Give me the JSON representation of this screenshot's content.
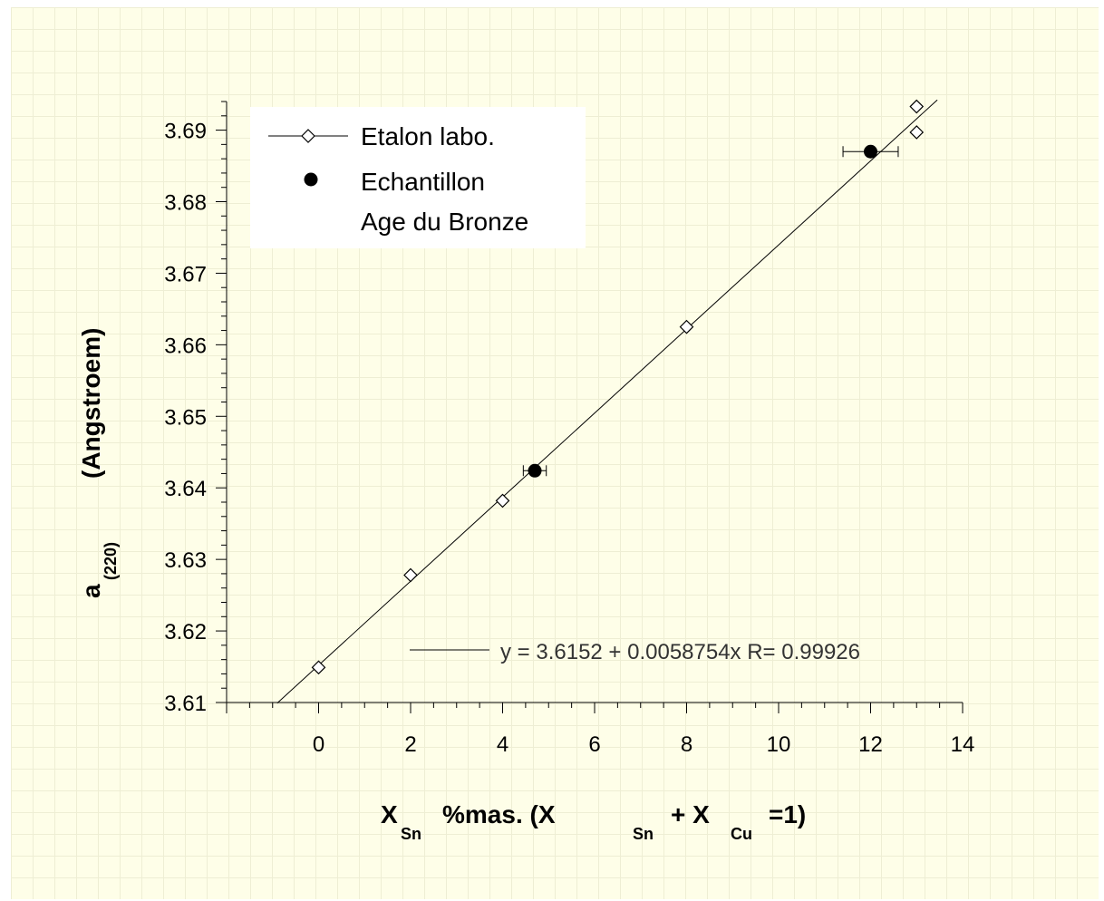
{
  "chart_data": {
    "type": "scatter",
    "xlim": [
      -2,
      14
    ],
    "ylim": [
      3.61,
      3.694
    ],
    "xticks": [
      "0",
      "2",
      "4",
      "6",
      "8",
      "10",
      "12",
      "14"
    ],
    "yticks": [
      "3.61",
      "3.62",
      "3.63",
      "3.64",
      "3.65",
      "3.66",
      "3.67",
      "3.68",
      "3.69"
    ],
    "xlabel": {
      "main": "X",
      "sub": "Sn",
      "mid": "%mas.   (X",
      "sub2": "Sn",
      "plus": "+ X",
      "sub3": "Cu",
      "end": "=1)"
    },
    "ylabel": {
      "main": "a",
      "sub": "(220)",
      "unit": "(Angstroem)"
    },
    "grid": false,
    "legend_position": "top-left",
    "series": [
      {
        "name": "Etalon labo.",
        "marker": "diamond-open",
        "x": [
          0,
          2,
          4,
          8,
          13,
          13
        ],
        "y": [
          3.6149,
          3.6278,
          3.6382,
          3.6625,
          3.6933,
          3.6897
        ]
      },
      {
        "name": "Echantillon",
        "name_line2": "Age du Bronze",
        "marker": "circle-filled",
        "x": [
          4.7,
          12
        ],
        "y": [
          3.6424,
          3.687
        ],
        "xerr": [
          0.25,
          0.6
        ]
      }
    ],
    "fit": {
      "label": "y = 3.6152 + 0.0058754x R= 0.99926",
      "intercept": 3.6152,
      "slope": 0.0058754,
      "x_range": [
        -0.9,
        13.45
      ]
    }
  }
}
